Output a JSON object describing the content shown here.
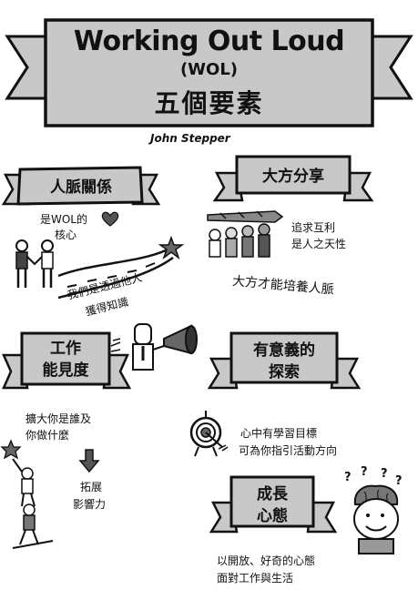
{
  "header": {
    "title": "Working Out Loud",
    "subtitle": "(WOL)",
    "chinese_title": "五個要素",
    "author": "John Stepper"
  },
  "colors": {
    "banner_fill": "#c8c8c8",
    "ink": "#111111",
    "heart": "#555555",
    "skin": "#f0f0f0"
  },
  "sections": {
    "relationships": {
      "title": "人脈關係",
      "note_line1": "是WOL的",
      "note_line2": "核心",
      "path_line1": "我們是透過他人",
      "path_line2": "獲得知識"
    },
    "generosity": {
      "title": "大方分享",
      "note_line1": "追求互利",
      "note_line2": "是人之天性",
      "note_line3": "大方才能培養人脈"
    },
    "visible_work": {
      "title_line1": "工作",
      "title_line2": "能見度",
      "note_line1": "擴大你是誰及",
      "note_line2": "你做什麼",
      "note_line3": "拓展",
      "note_line4": "影響力"
    },
    "purposeful_discovery": {
      "title_line1": "有意義的",
      "title_line2": "探索",
      "note_line1": "心中有學習目標",
      "note_line2": "可為你指引活動方向"
    },
    "growth_mindset": {
      "title_line1": "成長",
      "title_line2": "心態",
      "note_line1": "以開放、好奇的心態",
      "note_line2": "面對工作與生活"
    }
  }
}
